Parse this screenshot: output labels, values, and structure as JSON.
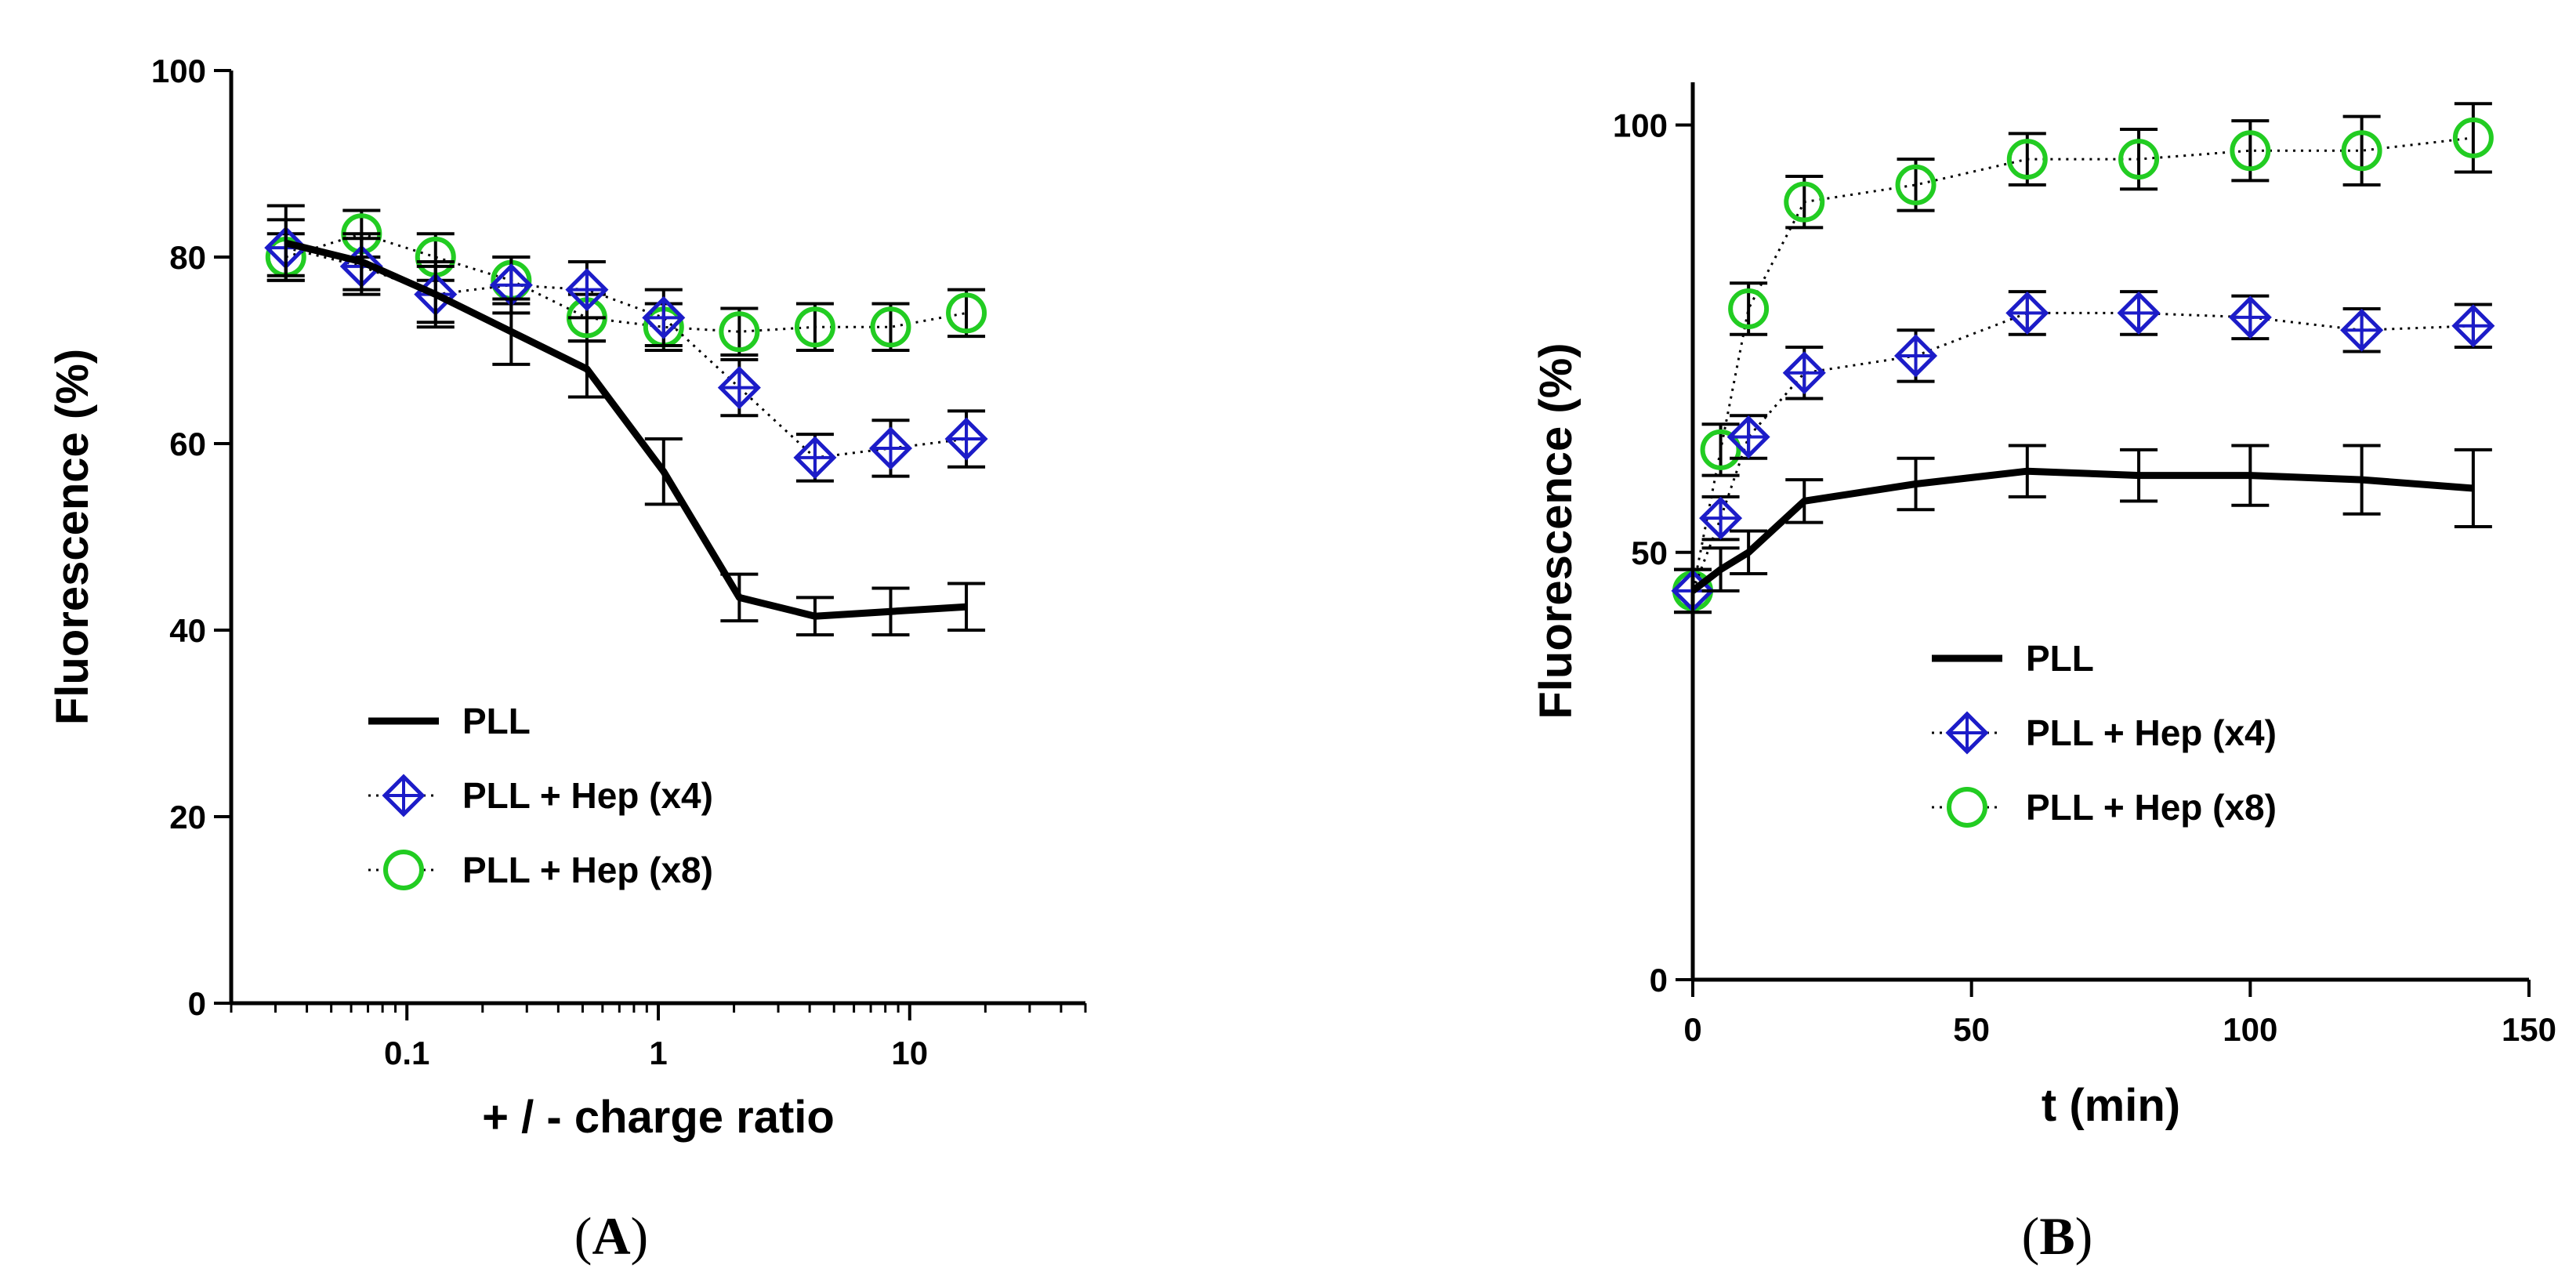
{
  "chart_data": [
    {
      "panel_label": "A",
      "type": "line",
      "xlabel": "+ / - charge ratio",
      "ylabel": "Fluorescence (%)",
      "xscale": "log",
      "xlim": [
        0.02,
        50
      ],
      "ylim": [
        0,
        100
      ],
      "xticks": [
        0.1,
        1,
        10
      ],
      "xtick_labels": [
        "0.1",
        "1",
        "10"
      ],
      "yticks": [
        0,
        20,
        40,
        60,
        80,
        100
      ],
      "ytick_labels": [
        "0",
        "20",
        "40",
        "60",
        "80",
        "100"
      ],
      "legend_position": "center-left",
      "x": [
        0.033,
        0.066,
        0.13,
        0.26,
        0.52,
        1.05,
        2.1,
        4.2,
        8.4,
        16.8
      ],
      "series": [
        {
          "name": "PLL",
          "style": "solid",
          "marker": "none",
          "color": "#000000",
          "values": [
            81.5,
            79.5,
            76.0,
            72.0,
            68.0,
            57.0,
            43.5,
            41.5,
            42.0,
            42.5
          ],
          "errors": [
            4.0,
            3.0,
            3.5,
            3.5,
            3.0,
            3.5,
            2.5,
            2.0,
            2.5,
            2.5
          ]
        },
        {
          "name": "PLL + Hep (x4)",
          "style": "dotted",
          "marker": "diamond-cross",
          "color": "#1c1cc8",
          "values": [
            81.0,
            79.0,
            76.0,
            77.0,
            76.5,
            73.5,
            66.0,
            58.5,
            59.5,
            60.5
          ],
          "errors": [
            3.0,
            3.0,
            3.0,
            3.0,
            3.0,
            3.0,
            3.0,
            2.5,
            3.0,
            3.0
          ]
        },
        {
          "name": "PLL + Hep (x8)",
          "style": "dotted",
          "marker": "circle",
          "color": "#22cc22",
          "values": [
            80.0,
            82.5,
            80.0,
            77.5,
            73.5,
            72.5,
            72.0,
            72.5,
            72.5,
            74.0
          ],
          "errors": [
            2.5,
            2.5,
            2.5,
            2.5,
            2.5,
            2.5,
            2.5,
            2.5,
            2.5,
            2.5
          ]
        }
      ]
    },
    {
      "panel_label": "B",
      "type": "line",
      "xlabel": "t (min)",
      "ylabel": "Fluorescence (%)",
      "xlim": [
        0,
        150
      ],
      "ylim": [
        0,
        105
      ],
      "xticks": [
        0,
        50,
        100,
        150
      ],
      "xtick_labels": [
        "0",
        "50",
        "100",
        "150"
      ],
      "yticks": [
        0,
        50,
        100
      ],
      "ytick_labels": [
        "0",
        "50",
        "100"
      ],
      "legend_position": "center",
      "x": [
        0,
        5,
        10,
        20,
        40,
        60,
        80,
        100,
        120,
        140
      ],
      "series": [
        {
          "name": "PLL",
          "style": "solid",
          "marker": "none",
          "color": "#000000",
          "values": [
            45.5,
            48.0,
            50.0,
            56.0,
            58.0,
            59.5,
            59.0,
            59.0,
            58.5,
            57.5
          ],
          "errors": [
            2.5,
            2.5,
            2.5,
            2.5,
            3.0,
            3.0,
            3.0,
            3.5,
            4.0,
            4.5
          ]
        },
        {
          "name": "PLL + Hep (x4)",
          "style": "dotted",
          "marker": "diamond-cross",
          "color": "#1c1cc8",
          "values": [
            45.5,
            54.0,
            63.5,
            71.0,
            73.0,
            78.0,
            78.0,
            77.5,
            76.0,
            76.5
          ],
          "errors": [
            2.5,
            2.5,
            2.5,
            3.0,
            3.0,
            2.5,
            2.5,
            2.5,
            2.5,
            2.5
          ]
        },
        {
          "name": "PLL + Hep (x8)",
          "style": "dotted",
          "marker": "circle",
          "color": "#22cc22",
          "values": [
            45.5,
            62.0,
            78.5,
            91.0,
            93.0,
            96.0,
            96.0,
            97.0,
            97.0,
            98.5
          ],
          "errors": [
            2.5,
            3.0,
            3.0,
            3.0,
            3.0,
            3.0,
            3.5,
            3.5,
            4.0,
            4.0
          ]
        }
      ]
    }
  ]
}
